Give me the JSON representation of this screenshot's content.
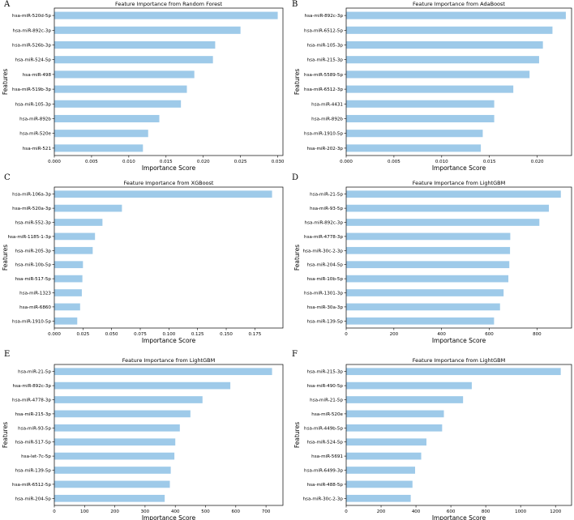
{
  "figure": {
    "bar_color": "#9ecae9",
    "axis_color": "#000000"
  },
  "chart_data": [
    {
      "panel": "A",
      "type": "bar",
      "orientation": "horizontal",
      "title": "Feature Importance from Random Forest",
      "xlabel": "Importance Score",
      "ylabel": "Features",
      "categories": [
        "hsa-miR-520d-5p",
        "hsa-miR-892c-3p",
        "hsa-miR-526b-3p",
        "hsa-miR-524-5p",
        "hsa-miR-498",
        "hsa-miR-519b-3p",
        "hsa-miR-105-3p",
        "hsa-miR-892b",
        "hsa-miR-520e",
        "hsa-miR-521"
      ],
      "values": [
        0.03,
        0.025,
        0.0216,
        0.0213,
        0.0188,
        0.0178,
        0.017,
        0.0141,
        0.0126,
        0.0119
      ],
      "xlim": [
        0,
        0.0307
      ],
      "xticks": [
        0.0,
        0.005,
        0.01,
        0.015,
        0.02,
        0.025,
        0.03
      ],
      "xtick_labels": [
        "0.000",
        "0.005",
        "0.010",
        "0.015",
        "0.020",
        "0.025",
        "0.030"
      ],
      "grid": false
    },
    {
      "panel": "B",
      "type": "bar",
      "orientation": "horizontal",
      "title": "Feature Importance from AdaBoost",
      "xlabel": "Importance Score",
      "ylabel": "Features",
      "categories": [
        "hsa-miR-892c-3p",
        "hsa-miR-6512-5p",
        "hsa-miR-105-3p",
        "hsa-miR-215-3p",
        "hsa-miR-5589-5p",
        "hsa-miR-6512-3p",
        "hsa-miR-4431",
        "hsa-miR-892b",
        "hsa-miR-1910-5p",
        "hsa-miR-202-3p"
      ],
      "values": [
        0.023,
        0.0216,
        0.0206,
        0.0202,
        0.0192,
        0.0175,
        0.0155,
        0.0155,
        0.0143,
        0.0141
      ],
      "xlim": [
        0,
        0.0236
      ],
      "xticks": [
        0.0,
        0.005,
        0.01,
        0.015,
        0.02
      ],
      "xtick_labels": [
        "0.000",
        "0.005",
        "0.010",
        "0.015",
        "0.020"
      ],
      "grid": false
    },
    {
      "panel": "C",
      "type": "bar",
      "orientation": "horizontal",
      "title": "Feature Importance from XGBoost",
      "xlabel": "Importance Score",
      "ylabel": "Features",
      "categories": [
        "hsa-miR-106a-3p",
        "hsa-miR-520a-3p",
        "hsa-miR-552-3p",
        "hsa-miR-1185-1-3p",
        "hsa-miR-205-3p",
        "hsa-miR-10b-5p",
        "hsa-miR-517-5p",
        "hsa-miR-1323",
        "hsa-miR-6860",
        "hsa-miR-1910-5p"
      ],
      "values": [
        0.19,
        0.059,
        0.042,
        0.0355,
        0.0335,
        0.025,
        0.0245,
        0.024,
        0.0225,
        0.02
      ],
      "xlim": [
        0,
        0.1995
      ],
      "xticks": [
        0.0,
        0.025,
        0.05,
        0.075,
        0.1,
        0.125,
        0.15,
        0.175
      ],
      "xtick_labels": [
        "0.000",
        "0.025",
        "0.050",
        "0.075",
        "0.100",
        "0.125",
        "0.150",
        "0.175"
      ],
      "grid": false
    },
    {
      "panel": "D",
      "type": "bar",
      "orientation": "horizontal",
      "title": "Feature Importance from LightGBM",
      "xlabel": "Importance Score",
      "ylabel": "Features",
      "categories": [
        "hsa-miR-21-5p",
        "hsa-miR-93-5p",
        "hsa-miR-892c-3p",
        "hsa-miR-4778-3p",
        "hsa-miR-30c-2-3p",
        "hsa-miR-204-5p",
        "hsa-miR-10b-5p",
        "hsa-miR-1301-3p",
        "hsa-miR-30a-3p",
        "hsa-miR-139-5p"
      ],
      "values": [
        900,
        850,
        810,
        688,
        687,
        684,
        680,
        660,
        645,
        620
      ],
      "xlim": [
        0,
        945
      ],
      "xticks": [
        0,
        200,
        400,
        600,
        800
      ],
      "xtick_labels": [
        "0",
        "200",
        "400",
        "600",
        "800"
      ],
      "grid": false
    },
    {
      "panel": "E",
      "type": "bar",
      "orientation": "horizontal",
      "title": "Feature Importance from LightGBM",
      "xlabel": "Importance Score",
      "ylabel": "Features",
      "categories": [
        "hsa-miR-21-5p",
        "hsa-miR-892c-3p",
        "hsa-miR-4778-3p",
        "hsa-miR-215-3p",
        "hsa-miR-93-5p",
        "hsa-miR-517-5p",
        "hsa-let-7c-5p",
        "hsa-miR-139-5p",
        "hsa-miR-6512-5p",
        "hsa-miR-204-5p"
      ],
      "values": [
        720,
        582,
        490,
        450,
        415,
        400,
        397,
        385,
        382,
        365
      ],
      "xlim": [
        0,
        756
      ],
      "xticks": [
        0,
        100,
        200,
        300,
        400,
        500,
        600,
        700
      ],
      "xtick_labels": [
        "0",
        "100",
        "200",
        "300",
        "400",
        "500",
        "600",
        "700"
      ],
      "grid": false
    },
    {
      "panel": "F",
      "type": "bar",
      "orientation": "horizontal",
      "title": "Feature Importance from LightGBM",
      "xlabel": "Importance Score",
      "ylabel": "Features",
      "categories": [
        "hsa-miR-215-3p",
        "hsa-miR-490-5p",
        "hsa-miR-21-5p",
        "hsa-miR-520e",
        "hsa-miR-449b-5p",
        "hsa-miR-524-5p",
        "hsa-miR-5691",
        "hsa-miR-6499-3p",
        "hsa-miR-488-5p",
        "hsa-miR-30c-2-3p"
      ],
      "values": [
        1230,
        720,
        670,
        560,
        550,
        460,
        430,
        395,
        380,
        370
      ],
      "xlim": [
        0,
        1292
      ],
      "xticks": [
        0,
        200,
        400,
        600,
        800,
        1000,
        1200
      ],
      "xtick_labels": [
        "0",
        "200",
        "400",
        "600",
        "800",
        "1000",
        "1200"
      ],
      "grid": false
    }
  ]
}
